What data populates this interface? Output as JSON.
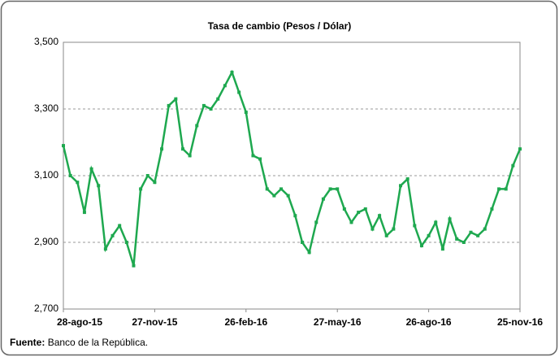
{
  "chart_data": {
    "type": "line",
    "title": "Tasa de cambio (Pesos / Dólar)",
    "x": [
      "2015-08-28",
      "2015-09-04",
      "2015-09-11",
      "2015-09-18",
      "2015-09-25",
      "2015-10-02",
      "2015-10-09",
      "2015-10-16",
      "2015-10-23",
      "2015-10-30",
      "2015-11-06",
      "2015-11-13",
      "2015-11-20",
      "2015-11-27",
      "2015-12-04",
      "2015-12-11",
      "2015-12-18",
      "2015-12-25",
      "2016-01-01",
      "2016-01-08",
      "2016-01-15",
      "2016-01-22",
      "2016-01-29",
      "2016-02-05",
      "2016-02-12",
      "2016-02-19",
      "2016-02-26",
      "2016-03-04",
      "2016-03-11",
      "2016-03-18",
      "2016-03-25",
      "2016-04-01",
      "2016-04-08",
      "2016-04-15",
      "2016-04-22",
      "2016-04-29",
      "2016-05-06",
      "2016-05-13",
      "2016-05-20",
      "2016-05-27",
      "2016-06-03",
      "2016-06-10",
      "2016-06-17",
      "2016-06-24",
      "2016-07-01",
      "2016-07-08",
      "2016-07-15",
      "2016-07-22",
      "2016-07-29",
      "2016-08-05",
      "2016-08-12",
      "2016-08-19",
      "2016-08-26",
      "2016-09-02",
      "2016-09-09",
      "2016-09-16",
      "2016-09-23",
      "2016-09-30",
      "2016-10-07",
      "2016-10-14",
      "2016-10-21",
      "2016-10-28",
      "2016-11-04",
      "2016-11-11",
      "2016-11-18",
      "2016-11-25"
    ],
    "series": [
      {
        "color": "#1ea84f",
        "values": [
          3190,
          3100,
          3080,
          2990,
          3120,
          3070,
          2880,
          2920,
          2950,
          2900,
          2830,
          3060,
          3100,
          3080,
          3180,
          3310,
          3330,
          3180,
          3160,
          3250,
          3310,
          3300,
          3330,
          3370,
          3410,
          3350,
          3290,
          3160,
          3150,
          3060,
          3040,
          3060,
          3040,
          2980,
          2900,
          2870,
          2960,
          3030,
          3060,
          3060,
          3000,
          2960,
          2990,
          3000,
          2940,
          2980,
          2920,
          2940,
          3070,
          3090,
          2950,
          2890,
          2920,
          2960,
          2880,
          2970,
          2910,
          2900,
          2930,
          2920,
          2940,
          3000,
          3060,
          3060,
          3130,
          3180
        ]
      }
    ],
    "xlim": [
      "2015-08-28",
      "2016-11-25"
    ],
    "xticks": [
      {
        "value": "2015-08-28",
        "label": "28-ago-15"
      },
      {
        "value": "2015-11-27",
        "label": "27-nov-15"
      },
      {
        "value": "2016-02-26",
        "label": "26-feb-16"
      },
      {
        "value": "2016-05-27",
        "label": "27-may-16"
      },
      {
        "value": "2016-08-26",
        "label": "26-ago-16"
      },
      {
        "value": "2016-11-25",
        "label": "25-nov-16"
      }
    ],
    "ylim": [
      2700,
      3500
    ],
    "yticks": [
      {
        "value": 2700,
        "label": "2,700"
      },
      {
        "value": 2900,
        "label": "2,900"
      },
      {
        "value": 3100,
        "label": "3,100"
      },
      {
        "value": 3300,
        "label": "3,300"
      },
      {
        "value": 3500,
        "label": "3,500"
      }
    ],
    "grid": true
  },
  "source": {
    "label": "Fuente:",
    "text": "Banco de la República."
  }
}
